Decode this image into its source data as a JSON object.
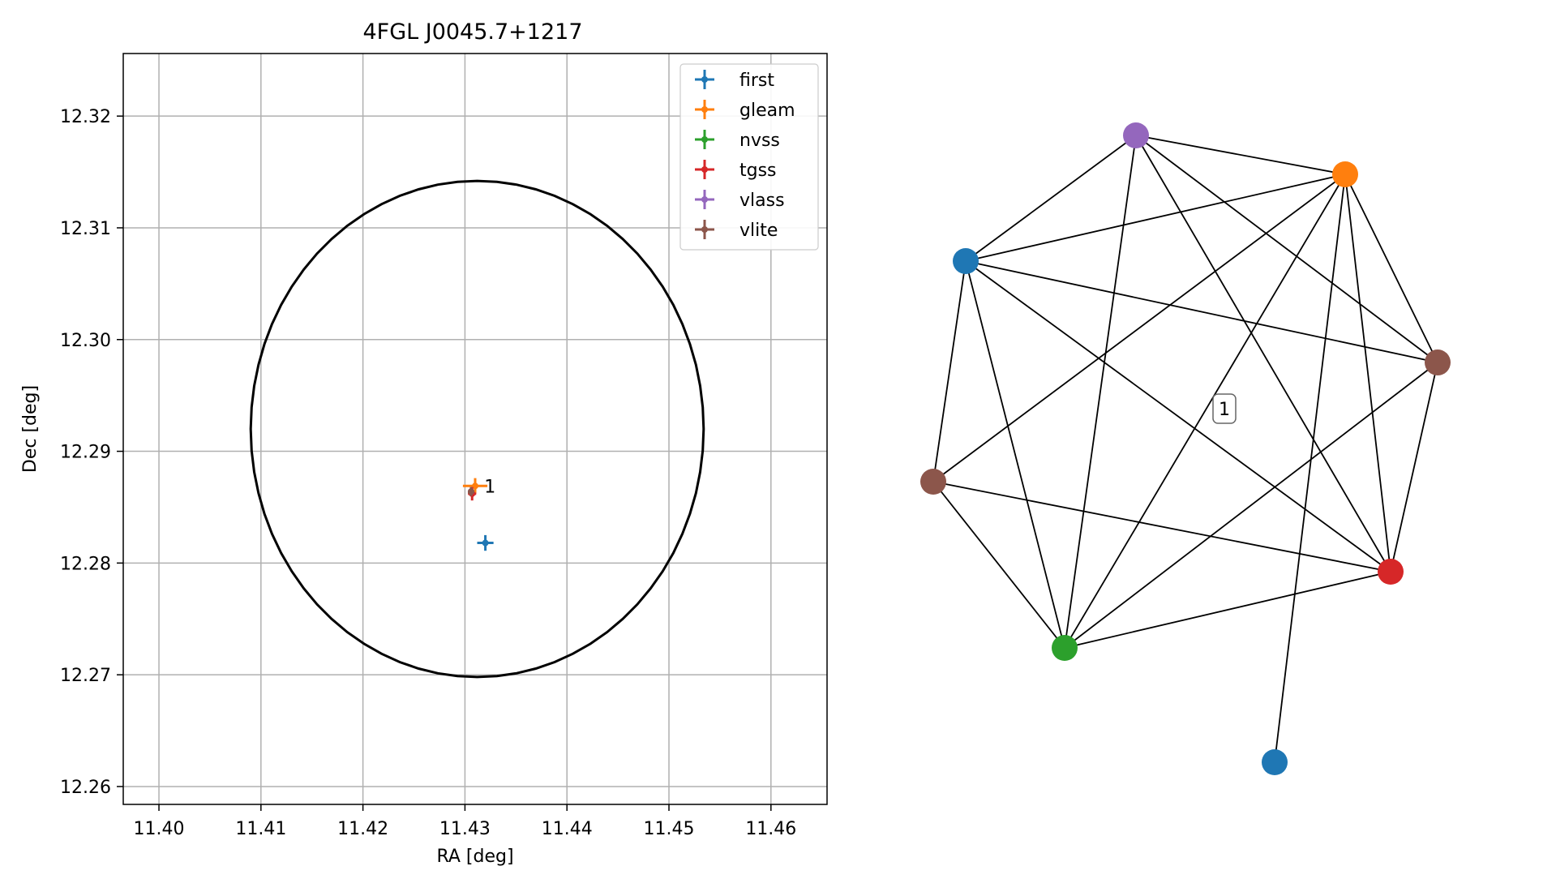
{
  "chart_data": [
    {
      "type": "scatter",
      "title": "4FGL J0045.7+1217",
      "xlabel": "RA [deg]",
      "ylabel": "Dec [deg]",
      "xlim": [
        11.3965,
        11.4655
      ],
      "ylim": [
        12.2584,
        12.3256
      ],
      "xticks": [
        11.4,
        11.41,
        11.42,
        11.43,
        11.44,
        11.45,
        11.46
      ],
      "xtick_labels": [
        "11.40",
        "11.41",
        "11.42",
        "11.43",
        "11.44",
        "11.45",
        "11.46"
      ],
      "yticks": [
        12.26,
        12.27,
        12.28,
        12.29,
        12.3,
        12.31,
        12.32
      ],
      "ytick_labels": [
        "12.26",
        "12.27",
        "12.28",
        "12.29",
        "12.30",
        "12.31",
        "12.32"
      ],
      "grid": true,
      "legend_position": "top-right",
      "circle": {
        "ra": 11.4312,
        "dec": 12.292,
        "radius": 0.0222
      },
      "series": [
        {
          "name": "first",
          "color": "#1f77b4",
          "points": [
            {
              "ra": 11.432,
              "dec": 12.2818,
              "ra_err": 0.0008,
              "dec_err": 0.0007
            }
          ]
        },
        {
          "name": "gleam",
          "color": "#ff7f0e",
          "points": [
            {
              "ra": 11.431,
              "dec": 12.2869,
              "ra_err": 0.0012,
              "dec_err": 0.0007
            }
          ]
        },
        {
          "name": "nvss",
          "color": "#2ca02c",
          "points": [
            {
              "ra": 11.4306,
              "dec": 12.2863,
              "ra_err": 0.0003,
              "dec_err": 0.0003
            }
          ]
        },
        {
          "name": "tgss",
          "color": "#d62728",
          "points": [
            {
              "ra": 11.4307,
              "dec": 12.2862,
              "ra_err": 0.0004,
              "dec_err": 0.0006
            }
          ]
        },
        {
          "name": "vlass",
          "color": "#9467bd",
          "points": [
            {
              "ra": 11.4306,
              "dec": 12.2864,
              "ra_err": 0.0002,
              "dec_err": 0.0002
            }
          ]
        },
        {
          "name": "vlite",
          "color": "#8c564b",
          "points": [
            {
              "ra": 11.4306,
              "dec": 12.2864,
              "ra_err": 0.0003,
              "dec_err": 0.0004
            }
          ]
        }
      ],
      "annotations": [
        {
          "text": "1",
          "ra": 11.4315,
          "dec": 12.2869
        }
      ]
    },
    {
      "type": "network",
      "label": "1",
      "nodes": [
        {
          "id": "first_a",
          "color": "#1f77b4"
        },
        {
          "id": "vlass",
          "color": "#9467bd"
        },
        {
          "id": "gleam",
          "color": "#ff7f0e"
        },
        {
          "id": "vlite_a",
          "color": "#8c564b"
        },
        {
          "id": "vlite_b",
          "color": "#8c564b"
        },
        {
          "id": "tgss",
          "color": "#d62728"
        },
        {
          "id": "nvss",
          "color": "#2ca02c"
        },
        {
          "id": "first_b",
          "color": "#1f77b4"
        }
      ],
      "edges": [
        [
          "vlass",
          "first_a"
        ],
        [
          "vlass",
          "gleam"
        ],
        [
          "vlass",
          "vlite_a"
        ],
        [
          "vlass",
          "tgss"
        ],
        [
          "vlass",
          "nvss"
        ],
        [
          "first_a",
          "gleam"
        ],
        [
          "first_a",
          "vlite_a"
        ],
        [
          "first_a",
          "vlite_b"
        ],
        [
          "first_a",
          "nvss"
        ],
        [
          "first_a",
          "tgss"
        ],
        [
          "gleam",
          "vlite_b"
        ],
        [
          "gleam",
          "nvss"
        ],
        [
          "gleam",
          "vlite_a"
        ],
        [
          "gleam",
          "tgss"
        ],
        [
          "gleam",
          "first_b"
        ],
        [
          "vlite_a",
          "tgss"
        ],
        [
          "vlite_a",
          "nvss"
        ],
        [
          "vlite_b",
          "nvss"
        ],
        [
          "vlite_b",
          "tgss"
        ],
        [
          "nvss",
          "tgss"
        ]
      ]
    }
  ]
}
